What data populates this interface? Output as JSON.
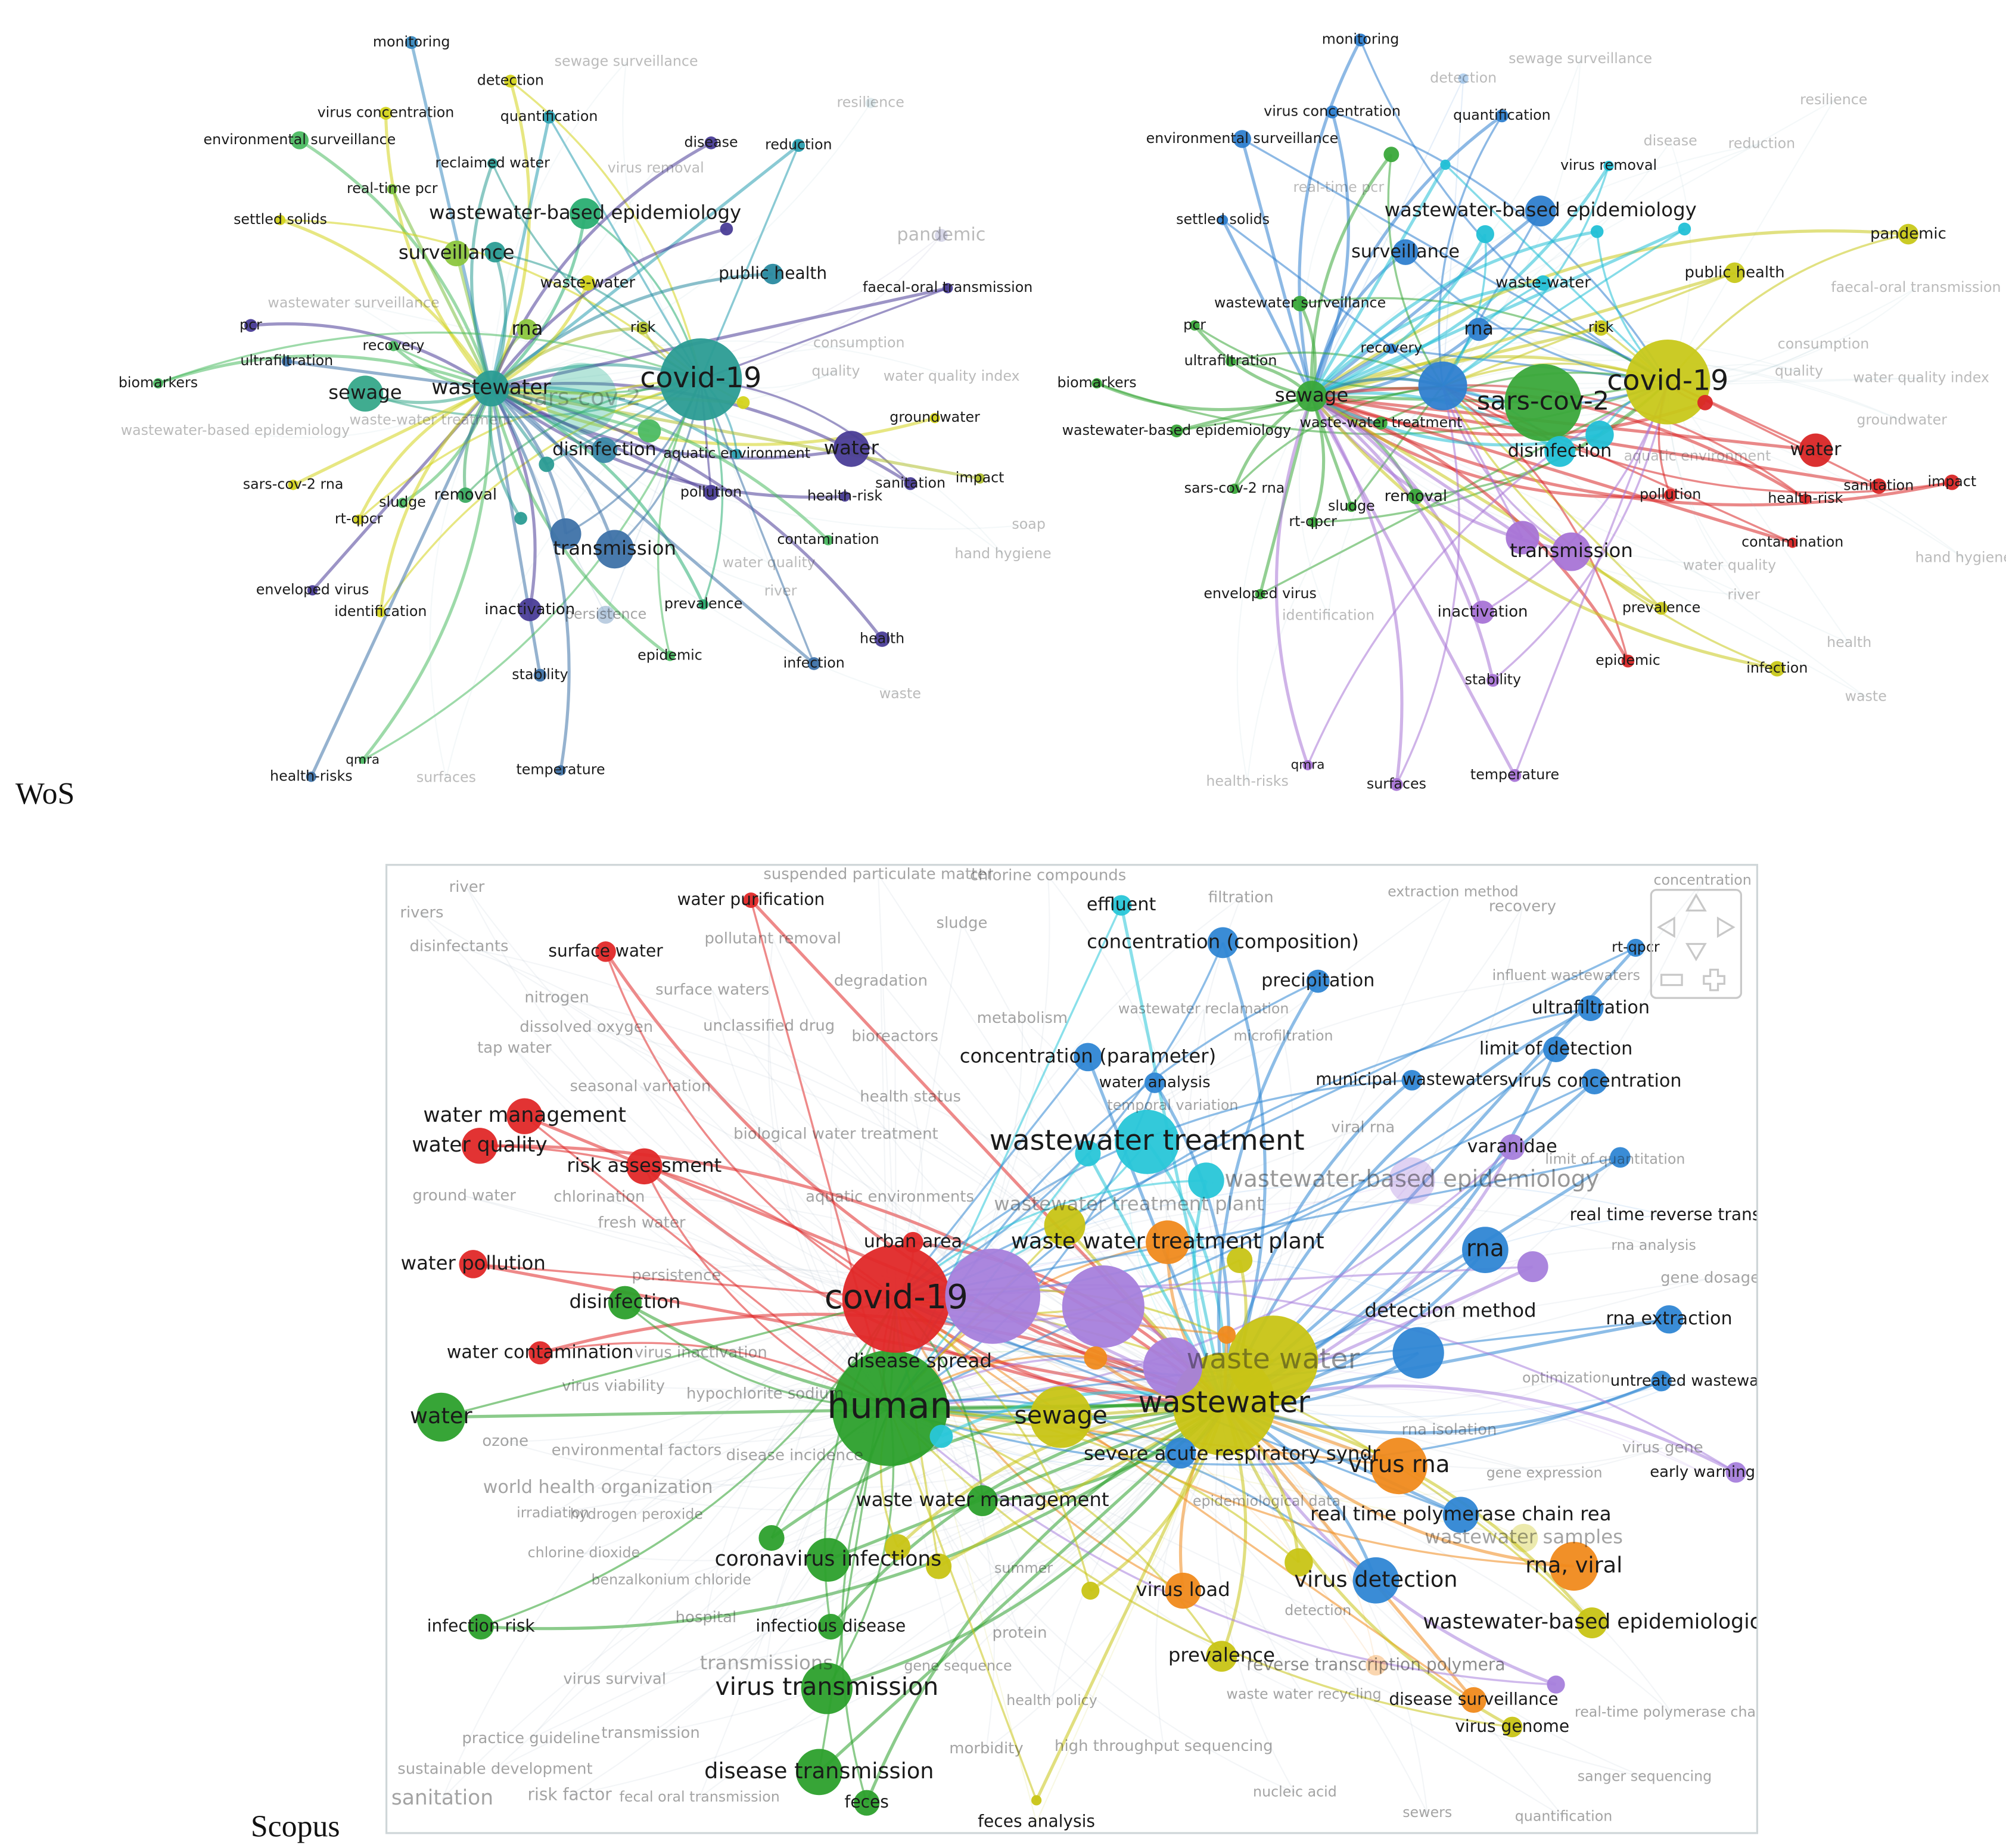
{
  "captions": [
    "WoS",
    "Scopus"
  ],
  "panels": [
    {
      "nodes": [
        "covid-19",
        "sars-cov-2",
        "wastewater",
        "sewage",
        "surveillance",
        "wastewater-based epidemiology",
        "rna",
        "disinfection",
        "water",
        "transmission",
        "monitoring",
        "detection",
        "virus concentration",
        "quantification",
        "environmental surveillance",
        "reclaimed water",
        "real-time pcr",
        "settled solids",
        "disease",
        "reduction",
        "resilience",
        "sewage surveillance",
        "virus removal",
        "pandemic",
        "public health",
        "faecal-oral transmission",
        "waste-water",
        "risk",
        "consumption",
        "quality",
        "water quality index",
        "wastewater surveillance",
        "pcr",
        "recovery",
        "ultrafiltration",
        "biomarkers",
        "wastewater-based epidemiology",
        "waste-water treatment",
        "groundwater",
        "aquatic environment",
        "sars-cov-2 rna",
        "removal",
        "sludge",
        "pollution",
        "health-risk",
        "sanitation",
        "impact",
        "rt-qpcr",
        "contamination",
        "water quality",
        "soap",
        "hand hygiene",
        "enveloped virus",
        "identification",
        "inactivation",
        "persistence",
        "river",
        "prevalence",
        "stability",
        "epidemic",
        "health",
        "infection",
        "waste",
        "qmra",
        "health-risks",
        "surfaces",
        "temperature"
      ]
    },
    {
      "nodes": [
        "covid-19",
        "sars-cov-2",
        "sewage",
        "surveillance",
        "wastewater-based epidemiology",
        "rna",
        "disinfection",
        "water",
        "transmission",
        "monitoring",
        "detection",
        "virus concentration",
        "quantification",
        "environmental surveillance",
        "virus removal",
        "real-time pcr",
        "settled solids",
        "disease",
        "reduction",
        "resilience",
        "sewage surveillance",
        "pandemic",
        "public health",
        "faecal-oral transmission",
        "waste-water",
        "risk",
        "consumption",
        "quality",
        "water quality index",
        "wastewater surveillance",
        "pcr",
        "recovery",
        "ultrafiltration",
        "biomarkers",
        "wastewater-based epidemiology",
        "waste-water treatment",
        "groundwater",
        "aquatic environment",
        "sars-cov-2 rna",
        "removal",
        "sludge",
        "pollution",
        "health-risk",
        "sanitation",
        "impact",
        "rt-qpcr",
        "contamination",
        "water quality",
        "hand hygiene",
        "enveloped virus",
        "identification",
        "inactivation",
        "prevalence",
        "river",
        "epidemic",
        "health",
        "infection",
        "stability",
        "waste",
        "qmra",
        "surfaces",
        "temperature",
        "health-risks"
      ]
    },
    {
      "nodes": [
        "covid-19",
        "human",
        "wastewater",
        "waste water",
        "sewage",
        "wastewater treatment",
        "waste water treatment plant",
        "wastewater-based epidemiology",
        "rna",
        "detection method",
        "virus rna",
        "rna, viral",
        "virus detection",
        "real time polymerase chain rea",
        "severe acute respiratory syndr",
        "wastewater-based epidemiologic",
        "wastewater samples",
        "virus load",
        "prevalence",
        "disease surveillance",
        "virus genome",
        "reverse transcription polymera",
        "water management",
        "water quality",
        "risk assessment",
        "water pollution",
        "water contamination",
        "surface water",
        "water purification",
        "urban area",
        "disinfection",
        "water",
        "disease spread",
        "waste water management",
        "coronavirus infections",
        "infectious disease",
        "virus transmission",
        "disease transmission",
        "feces",
        "infection risk",
        "effluent",
        "concentration (composition)",
        "precipitation",
        "concentration (parameter)",
        "water analysis",
        "municipal wastewaters",
        "virus concentration",
        "limit of detection",
        "ultrafiltration",
        "rt-qpcr",
        "varanidae",
        "real time reverse trans",
        "rna extraction",
        "untreated wastewa",
        "early warning",
        "suspended particulate matter",
        "chlorine compounds",
        "river",
        "rivers",
        "disinfectants",
        "pollutant removal",
        "sludge",
        "nitrogen",
        "surface waters",
        "degradation",
        "dissolved oxygen",
        "unclassified drug",
        "bioreactors",
        "metabolism",
        "tap water",
        "seasonal variation",
        "health status",
        "biological water treatment",
        "ground water",
        "chlorination",
        "aquatic environments",
        "fresh water",
        "persistence",
        "virus inactivation",
        "virus viability",
        "hypochlorite sodium",
        "ozone",
        "environmental factors",
        "disease incidence",
        "world health organization",
        "irradiation",
        "hydrogen peroxide",
        "chlorine dioxide",
        "benzalkonium chloride",
        "hospital",
        "summer",
        "protein",
        "transmissions",
        "virus survival",
        "gene sequence",
        "health policy",
        "transmission",
        "practice guideline",
        "high throughput sequencing",
        "morbidity",
        "sustainable development",
        "sanitation",
        "risk factor",
        "fecal oral transmission",
        "nucleic acid",
        "sewers",
        "quantification",
        "sanger sequencing",
        "filtration",
        "extraction method",
        "recovery",
        "influent wastewaters",
        "wastewater reclamation",
        "microfiltration",
        "temporal variation",
        "viral rna",
        "limit of quantitation",
        "rna analysis",
        "gene dosage",
        "optimization",
        "rna isolation",
        "gene expression",
        "virus gene",
        "epidemiological data",
        "detection",
        "waste water recycling",
        "real-time polymerase chain",
        "feces analysis",
        "concentration",
        "wastewater treatment plant"
      ]
    }
  ]
}
